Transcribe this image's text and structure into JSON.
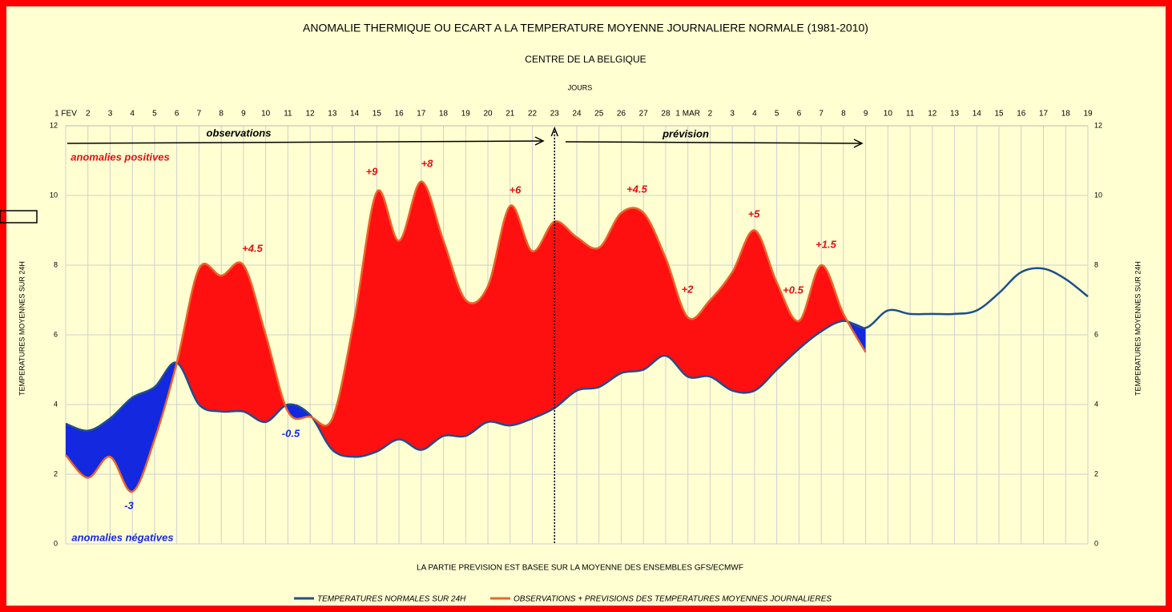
{
  "chart_data": {
    "type": "line",
    "title": "ANOMALIE THERMIQUE OU ECART A LA TEMPERATURE MOYENNE JOURNALIERE NORMALE (1981-2010)",
    "subtitle": "CENTRE DE LA BELGIQUE",
    "x_label": "JOURS",
    "y_label": "TEMPERATURES MOYENNES SUR 24H",
    "y2_label": "TEMPERATURES MOYENNES SUR 24H",
    "footnote": "LA PARTIE PREVISION EST BASEE SUR LA MOYENNE DES ENSEMBLES GFS/ECMWF",
    "categories": [
      "1 FEV",
      "2",
      "3",
      "4",
      "5",
      "6",
      "7",
      "8",
      "9",
      "10",
      "11",
      "12",
      "13",
      "14",
      "15",
      "16",
      "17",
      "18",
      "19",
      "20",
      "21",
      "22",
      "23",
      "24",
      "25",
      "26",
      "27",
      "28",
      "1 MAR",
      "2",
      "3",
      "4",
      "5",
      "6",
      "7",
      "8",
      "9",
      "10",
      "11",
      "12",
      "13",
      "14",
      "15",
      "16",
      "17",
      "18",
      "19"
    ],
    "series": [
      {
        "name": "TEMPERATURES NORMALES SUR 24H",
        "color": "#1f4e8c",
        "values": [
          3.45,
          3.25,
          3.6,
          4.2,
          4.5,
          5.2,
          4.0,
          3.8,
          3.8,
          3.5,
          4.0,
          3.7,
          2.7,
          2.5,
          2.65,
          3.0,
          2.7,
          3.1,
          3.1,
          3.5,
          3.4,
          3.6,
          3.9,
          4.4,
          4.5,
          4.9,
          5.0,
          5.4,
          4.8,
          4.8,
          4.4,
          4.4,
          5.0,
          5.6,
          6.1,
          6.4,
          6.2,
          6.7,
          6.6,
          6.6,
          6.6,
          6.7,
          7.2,
          7.8,
          7.9,
          7.6,
          7.1
        ]
      },
      {
        "name": "OBSERVATIONS + PREVISIONS DES TEMPERATURES MOYENNES JOURNALIERES",
        "color": "#e8652a",
        "values": [
          2.55,
          1.9,
          2.5,
          1.5,
          3.0,
          5.2,
          7.9,
          7.7,
          8.0,
          6.0,
          3.8,
          3.65,
          3.6,
          6.5,
          10.1,
          8.7,
          10.4,
          8.7,
          7.0,
          7.4,
          9.7,
          8.4,
          9.25,
          8.8,
          8.5,
          9.5,
          9.5,
          8.2,
          6.5,
          7.0,
          7.8,
          9.0,
          7.5,
          6.4,
          8.0,
          6.6,
          5.5,
          null,
          null,
          null,
          null,
          null,
          null,
          null,
          null,
          null,
          null
        ]
      }
    ],
    "ylim": [
      0,
      12
    ],
    "yticks": [
      0,
      2,
      4,
      6,
      8,
      10,
      12
    ],
    "y2lim": [
      0,
      12
    ],
    "y2ticks": [
      0,
      2,
      4,
      6,
      8,
      10,
      12
    ],
    "grid": true,
    "legend": "bottom",
    "annotations": [
      "observations",
      "prévision",
      "anomalies positives",
      "anomalies négatives",
      "+9",
      "+8",
      "+6",
      "+4.5",
      "+4.5",
      "+5",
      "+1.5",
      "+2",
      "+0.5",
      "-3",
      "-0.5"
    ]
  }
}
